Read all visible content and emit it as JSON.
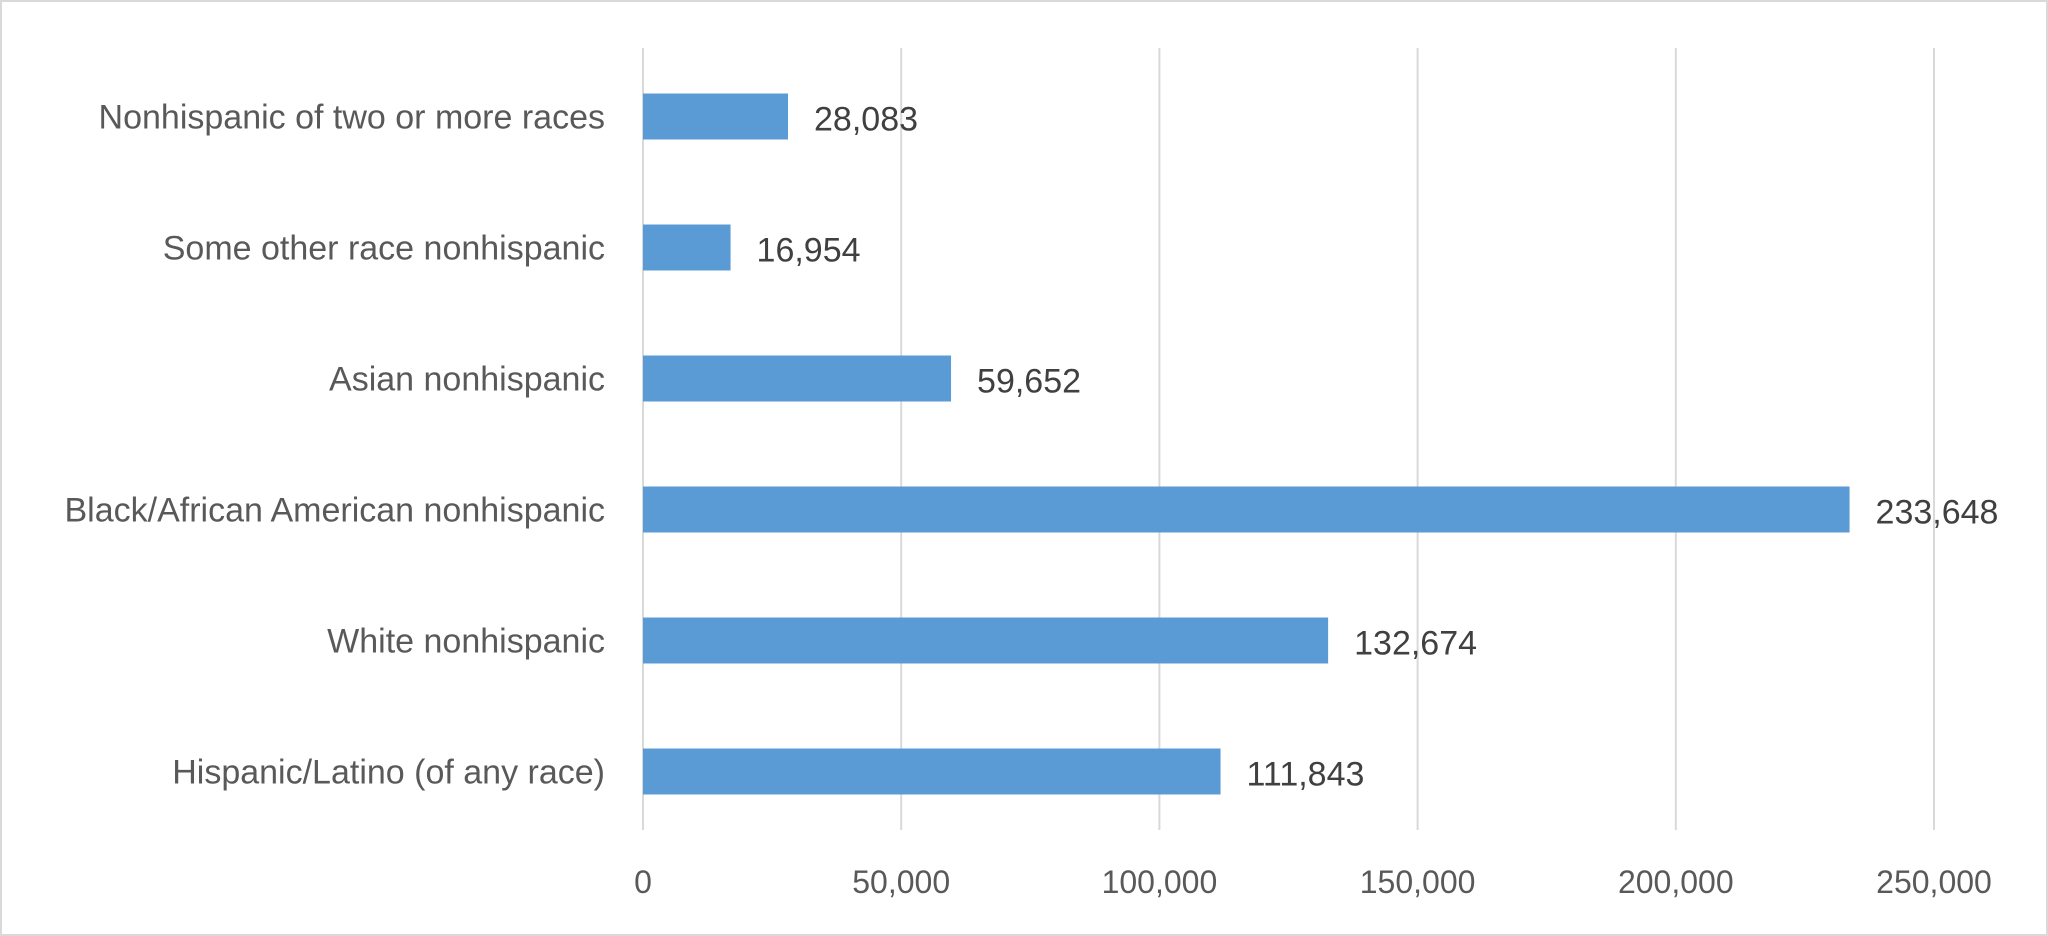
{
  "chart_data": {
    "type": "bar",
    "orientation": "horizontal",
    "categories": [
      "Hispanic/Latino (of any race)",
      "White nonhispanic",
      "Black/African American nonhispanic",
      "Asian nonhispanic",
      "Some other race nonhispanic",
      "Nonhispanic of two or more races"
    ],
    "values": [
      111843,
      132674,
      233648,
      59652,
      16954,
      28083
    ],
    "data_labels": [
      "111,843",
      "132,674",
      "233,648",
      "59,652",
      "16,954",
      "28,083"
    ],
    "x_ticks": [
      0,
      50000,
      100000,
      150000,
      200000,
      250000
    ],
    "x_tick_labels": [
      "0",
      "50,000",
      "100,000",
      "150,000",
      "200,000",
      "250,000"
    ],
    "xlim": [
      0,
      250000
    ],
    "title": "",
    "xlabel": "",
    "ylabel": "",
    "grid": "vertical",
    "legend": "none",
    "colors": {
      "bar": "#5b9bd5",
      "grid": "#d9d9d9",
      "axis_text": "#595959",
      "data_label": "#404040",
      "border": "#d9d9d9"
    }
  }
}
